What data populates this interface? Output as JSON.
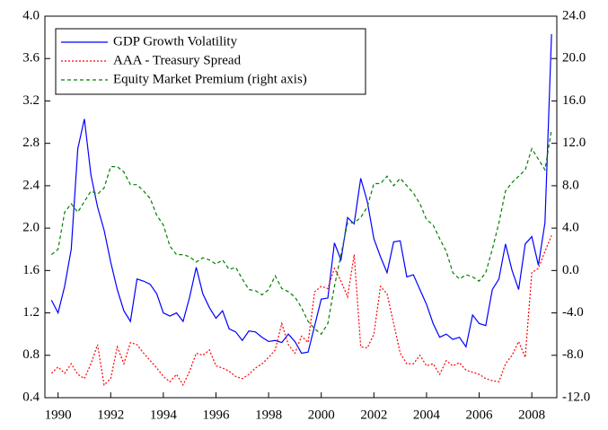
{
  "chart_data": {
    "type": "line",
    "x": [
      1989.75,
      1990.0,
      1990.25,
      1990.5,
      1990.75,
      1991.0,
      1991.25,
      1991.5,
      1991.75,
      1992.0,
      1992.25,
      1992.5,
      1992.75,
      1993.0,
      1993.25,
      1993.5,
      1993.75,
      1994.0,
      1994.25,
      1994.5,
      1994.75,
      1995.0,
      1995.25,
      1995.5,
      1995.75,
      1996.0,
      1996.25,
      1996.5,
      1996.75,
      1997.0,
      1997.25,
      1997.5,
      1997.75,
      1998.0,
      1998.25,
      1998.5,
      1998.75,
      1999.0,
      1999.25,
      1999.5,
      1999.75,
      2000.0,
      2000.25,
      2000.5,
      2000.75,
      2001.0,
      2001.25,
      2001.5,
      2001.75,
      2002.0,
      2002.25,
      2002.5,
      2002.75,
      2003.0,
      2003.25,
      2003.5,
      2003.75,
      2004.0,
      2004.25,
      2004.5,
      2004.75,
      2005.0,
      2005.25,
      2005.5,
      2005.75,
      2006.0,
      2006.25,
      2006.5,
      2006.75,
      2007.0,
      2007.25,
      2007.5,
      2007.75,
      2008.0,
      2008.25,
      2008.5,
      2008.75
    ],
    "series": [
      {
        "name": "GDP Growth Volatility",
        "color": "#0000ff",
        "dash": "solid",
        "values": [
          1.32,
          1.2,
          1.45,
          1.8,
          2.75,
          3.03,
          2.5,
          2.2,
          1.98,
          1.68,
          1.42,
          1.22,
          1.12,
          1.52,
          1.5,
          1.47,
          1.38,
          1.2,
          1.17,
          1.2,
          1.12,
          1.35,
          1.63,
          1.38,
          1.25,
          1.15,
          1.22,
          1.05,
          1.02,
          0.94,
          1.03,
          1.02,
          0.97,
          0.93,
          0.94,
          0.92,
          1.0,
          0.93,
          0.82,
          0.83,
          1.08,
          1.33,
          1.34,
          1.86,
          1.7,
          2.1,
          2.04,
          2.47,
          2.25,
          1.9,
          1.73,
          1.58,
          1.87,
          1.88,
          1.54,
          1.56,
          1.42,
          1.28,
          1.1,
          0.97,
          1.0,
          0.95,
          0.97,
          0.88,
          1.18,
          1.1,
          1.08,
          1.42,
          1.52,
          1.85,
          1.6,
          1.42,
          1.85,
          1.92,
          1.65,
          2.05,
          3.83
        ]
      },
      {
        "name": "AAA - Treasury Spread",
        "color": "#ff0000",
        "dash": "dotted",
        "values": [
          0.63,
          0.69,
          0.63,
          0.72,
          0.62,
          0.58,
          0.72,
          0.9,
          0.52,
          0.58,
          0.88,
          0.72,
          0.92,
          0.9,
          0.82,
          0.75,
          0.68,
          0.6,
          0.55,
          0.62,
          0.52,
          0.65,
          0.82,
          0.8,
          0.85,
          0.7,
          0.68,
          0.65,
          0.6,
          0.58,
          0.62,
          0.68,
          0.72,
          0.78,
          0.85,
          1.1,
          0.9,
          0.82,
          0.98,
          0.92,
          1.4,
          1.45,
          1.43,
          1.62,
          1.5,
          1.35,
          1.75,
          0.88,
          0.87,
          1.0,
          1.45,
          1.38,
          1.1,
          0.82,
          0.72,
          0.72,
          0.8,
          0.7,
          0.72,
          0.62,
          0.75,
          0.7,
          0.73,
          0.66,
          0.64,
          0.62,
          0.58,
          0.56,
          0.55,
          0.72,
          0.8,
          0.93,
          0.78,
          1.58,
          1.62,
          1.78,
          1.93
        ]
      },
      {
        "name": "Equity Market Premium (right axis)",
        "color": "#008000",
        "dash": "dashed",
        "axis": "y2",
        "values": [
          1.5,
          2,
          5.5,
          6.3,
          5.5,
          6.5,
          7.5,
          7.2,
          7.8,
          9.8,
          9.8,
          9.3,
          8.1,
          8.1,
          7.5,
          6.8,
          5.2,
          4.3,
          2.3,
          1.5,
          1.5,
          1.3,
          0.8,
          1.2,
          1.0,
          0.6,
          1.0,
          0.1,
          0.3,
          -0.8,
          -1.8,
          -1.9,
          -2.3,
          -1.8,
          -0.5,
          -1.7,
          -2.0,
          -2.5,
          -3.5,
          -4.8,
          -5.5,
          -6.0,
          -5.0,
          -1.5,
          1.5,
          4.5,
          4.5,
          5.0,
          6.0,
          8.2,
          8.2,
          8.9,
          8.0,
          8.7,
          8.0,
          7.3,
          6.3,
          4.8,
          4.3,
          3.0,
          1.8,
          -0.2,
          -0.8,
          -0.4,
          -0.6,
          -1.0,
          -0.2,
          2.0,
          4.5,
          7.5,
          8.3,
          8.9,
          9.5,
          11.5,
          10.5,
          9.5,
          13.3
        ]
      }
    ],
    "xlim": [
      1989.5,
      2008.95
    ],
    "xticks": [
      1990,
      1992,
      1994,
      1996,
      1998,
      2000,
      2002,
      2004,
      2006,
      2008
    ],
    "ylim": [
      0.4,
      4.0
    ],
    "yticks": [
      0.4,
      0.8,
      1.2,
      1.6,
      {
        "value": 2.0,
        "label": "2.0"
      },
      2.4,
      2.8,
      3.2,
      3.6,
      {
        "value": 4.0,
        "label": "4.0"
      }
    ],
    "y2lim": [
      -12,
      24
    ],
    "y2ticks": [
      {
        "value": -12,
        "label": "-12.0"
      },
      {
        "value": -8,
        "label": "-8.0"
      },
      {
        "value": -4,
        "label": "-4.0"
      },
      {
        "value": 0,
        "label": "0.0"
      },
      {
        "value": 4,
        "label": "4.0"
      },
      {
        "value": 8,
        "label": "8.0"
      },
      {
        "value": 12,
        "label": "12.0"
      },
      {
        "value": 16,
        "label": "16.0"
      },
      {
        "value": 20,
        "label": "20.0"
      },
      {
        "value": 24,
        "label": "24.0"
      }
    ],
    "legend": "upper left",
    "grid": false
  }
}
